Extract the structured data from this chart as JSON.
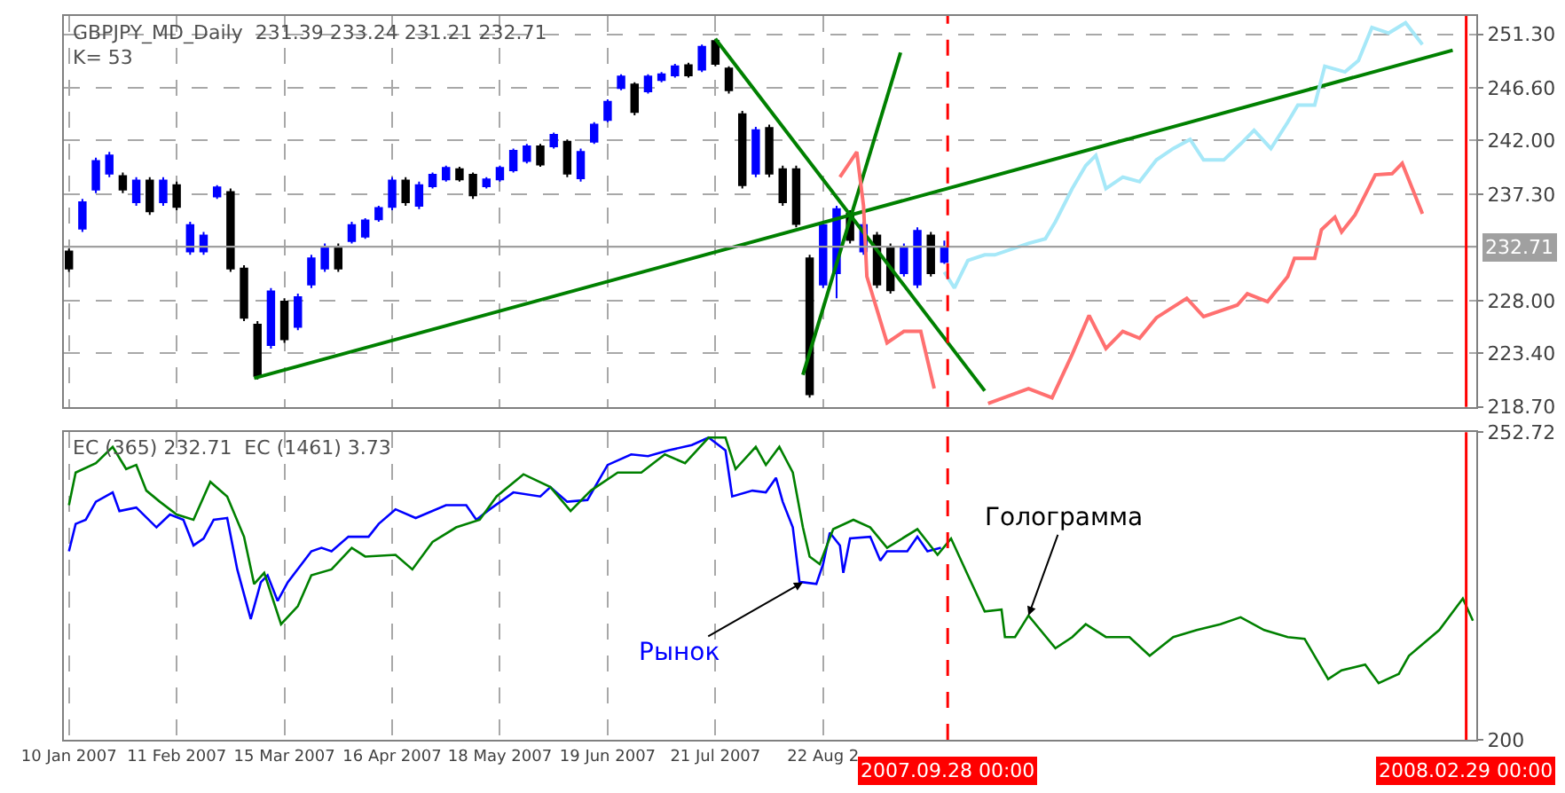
{
  "chart_data": [
    {
      "type": "candlestick",
      "title": "GBPJPY_MD_Daily  231.39 233.24 231.21 232.71",
      "subtitle": "K= 53",
      "x": [
        "2007-01-10",
        "2007-01-14",
        "2007-01-18",
        "2007-01-22",
        "2007-01-26",
        "2007-01-30",
        "2007-02-03",
        "2007-02-07",
        "2007-02-11",
        "2007-02-15",
        "2007-02-19",
        "2007-02-23",
        "2007-02-27",
        "2007-03-03",
        "2007-03-07",
        "2007-03-11",
        "2007-03-15",
        "2007-03-19",
        "2007-03-23",
        "2007-03-27",
        "2007-03-31",
        "2007-04-04",
        "2007-04-08",
        "2007-04-12",
        "2007-04-16",
        "2007-04-20",
        "2007-04-24",
        "2007-04-28",
        "2007-05-02",
        "2007-05-06",
        "2007-05-10",
        "2007-05-14",
        "2007-05-18",
        "2007-05-22",
        "2007-05-26",
        "2007-05-30",
        "2007-06-03",
        "2007-06-07",
        "2007-06-11",
        "2007-06-15",
        "2007-06-19",
        "2007-06-23",
        "2007-06-27",
        "2007-07-01",
        "2007-07-05",
        "2007-07-09",
        "2007-07-13",
        "2007-07-17",
        "2007-07-21",
        "2007-07-25",
        "2007-07-29",
        "2007-08-02",
        "2007-08-06",
        "2007-08-10",
        "2007-08-14",
        "2007-08-18",
        "2007-08-22",
        "2007-08-26",
        "2007-08-30",
        "2007-09-03",
        "2007-09-07",
        "2007-09-11",
        "2007-09-15",
        "2007-09-19",
        "2007-09-23",
        "2007-09-27"
      ],
      "ohlc": [
        [
          232.3,
          232.55,
          230.5,
          230.8
        ],
        [
          234.3,
          236.9,
          234.0,
          236.6
        ],
        [
          237.7,
          240.5,
          237.4,
          240.2
        ],
        [
          239.1,
          241.0,
          238.8,
          240.7
        ],
        [
          238.9,
          239.2,
          237.4,
          237.7
        ],
        [
          236.6,
          238.8,
          236.3,
          238.5
        ],
        [
          238.5,
          238.8,
          235.5,
          235.8
        ],
        [
          236.6,
          238.8,
          236.3,
          238.5
        ],
        [
          238.1,
          238.4,
          235.9,
          236.2
        ],
        [
          232.3,
          234.9,
          232.0,
          234.6
        ],
        [
          232.3,
          234.0,
          232.0,
          233.7
        ],
        [
          237.1,
          238.1,
          236.9,
          237.9
        ],
        [
          237.5,
          237.8,
          230.5,
          230.8
        ],
        [
          230.8,
          231.1,
          226.2,
          226.5
        ],
        [
          225.9,
          226.2,
          221.1,
          221.4
        ],
        [
          224.1,
          229.1,
          223.8,
          228.8
        ],
        [
          227.9,
          228.2,
          224.3,
          224.6
        ],
        [
          225.7,
          228.6,
          225.4,
          228.3
        ],
        [
          229.4,
          232.0,
          229.1,
          231.7
        ],
        [
          230.8,
          233.0,
          230.5,
          232.7
        ],
        [
          232.7,
          233.0,
          230.5,
          230.8
        ],
        [
          233.2,
          234.9,
          233.0,
          234.6
        ],
        [
          233.6,
          235.2,
          233.4,
          235.0
        ],
        [
          235.1,
          236.3,
          234.9,
          236.1
        ],
        [
          236.2,
          238.8,
          235.9,
          238.5
        ],
        [
          238.5,
          238.8,
          236.3,
          236.6
        ],
        [
          236.3,
          238.4,
          236.0,
          238.1
        ],
        [
          238.0,
          239.2,
          237.8,
          239.0
        ],
        [
          238.6,
          239.8,
          238.4,
          239.6
        ],
        [
          239.5,
          239.7,
          238.4,
          238.6
        ],
        [
          239.0,
          239.2,
          236.9,
          237.2
        ],
        [
          238.0,
          238.8,
          237.8,
          238.6
        ],
        [
          238.6,
          239.8,
          238.4,
          239.6
        ],
        [
          239.4,
          241.3,
          239.2,
          241.1
        ],
        [
          240.2,
          241.7,
          240.0,
          241.5
        ],
        [
          241.5,
          241.7,
          239.7,
          239.9
        ],
        [
          241.5,
          242.7,
          241.3,
          242.5
        ],
        [
          241.9,
          242.1,
          238.8,
          239.1
        ],
        [
          238.7,
          241.3,
          238.4,
          241.0
        ],
        [
          241.9,
          243.6,
          241.7,
          243.4
        ],
        [
          243.8,
          245.6,
          243.6,
          245.4
        ],
        [
          246.6,
          247.8,
          246.4,
          247.6
        ],
        [
          246.9,
          247.1,
          244.2,
          244.5
        ],
        [
          246.3,
          247.8,
          246.1,
          247.6
        ],
        [
          247.3,
          248.0,
          247.1,
          247.8
        ],
        [
          247.7,
          248.7,
          247.5,
          248.5
        ],
        [
          248.6,
          248.8,
          247.5,
          247.7
        ],
        [
          248.2,
          250.4,
          248.0,
          250.2
        ],
        [
          250.7,
          250.9,
          248.5,
          248.7
        ],
        [
          248.3,
          248.5,
          246.1,
          246.4
        ],
        [
          244.3,
          244.6,
          237.8,
          238.1
        ],
        [
          239.1,
          243.2,
          238.8,
          242.9
        ],
        [
          243.1,
          243.4,
          238.8,
          239.1
        ],
        [
          239.5,
          239.8,
          236.3,
          236.6
        ],
        [
          239.5,
          239.8,
          234.4,
          234.7
        ],
        [
          231.7,
          232.0,
          219.5,
          219.8
        ],
        [
          229.4,
          234.9,
          229.1,
          234.6
        ],
        [
          230.4,
          236.3,
          228.2,
          236.0
        ],
        [
          235.6,
          235.9,
          233.0,
          233.3
        ],
        [
          232.3,
          234.9,
          232.0,
          234.6
        ],
        [
          233.7,
          234.0,
          229.1,
          229.4
        ],
        [
          232.7,
          233.0,
          228.6,
          228.9
        ],
        [
          230.4,
          233.0,
          230.1,
          232.7
        ],
        [
          229.4,
          234.4,
          229.1,
          234.1
        ],
        [
          233.7,
          234.0,
          230.1,
          230.4
        ],
        [
          231.39,
          233.24,
          231.21,
          232.71
        ]
      ],
      "colors": [
        "#000000",
        "#0000ff",
        "#0000ff",
        "#0000ff",
        "#000000",
        "#0000ff",
        "#000000",
        "#0000ff",
        "#000000",
        "#0000ff",
        "#0000ff",
        "#0000ff",
        "#000000",
        "#000000",
        "#000000",
        "#0000ff",
        "#000000",
        "#0000ff",
        "#0000ff",
        "#0000ff",
        "#000000",
        "#0000ff",
        "#0000ff",
        "#0000ff",
        "#0000ff",
        "#000000",
        "#0000ff",
        "#0000ff",
        "#0000ff",
        "#000000",
        "#000000",
        "#0000ff",
        "#0000ff",
        "#0000ff",
        "#0000ff",
        "#000000",
        "#0000ff",
        "#000000",
        "#0000ff",
        "#0000ff",
        "#0000ff",
        "#0000ff",
        "#000000",
        "#0000ff",
        "#0000ff",
        "#0000ff",
        "#000000",
        "#0000ff",
        "#000000",
        "#000000",
        "#000000",
        "#0000ff",
        "#000000",
        "#000000",
        "#000000",
        "#000000",
        "#0000ff",
        "#0000ff",
        "#000000",
        "#0000ff",
        "#000000",
        "#000000",
        "#0000ff",
        "#0000ff",
        "#000000",
        "#0000ff"
      ],
      "series": [
        {
          "type": "line",
          "color": "#008000",
          "x": [
            "2007-03-06",
            "2008-02-25"
          ],
          "values": [
            221.2,
            249.9
          ]
        },
        {
          "type": "line",
          "color": "#008000",
          "x": [
            "2007-07-21",
            "2007-10-09"
          ],
          "values": [
            250.9,
            220.1
          ]
        },
        {
          "type": "line",
          "color": "#008000",
          "x": [
            "2007-08-16",
            "2007-09-14"
          ],
          "values": [
            221.5,
            249.7
          ]
        },
        {
          "type": "line",
          "color": "#ff7070",
          "x": [
            "2007-08-27",
            "2007-09-01",
            "2007-09-03",
            "2007-09-04",
            "2007-09-07",
            "2007-09-10",
            "2007-09-15",
            "2007-09-20",
            "2007-09-24",
            "2007-09-30",
            "2007-10-10",
            "2007-10-22",
            "2007-10-29",
            "2007-11-04",
            "2007-11-09",
            "2007-11-14",
            "2007-11-19",
            "2007-11-24",
            "2007-11-29",
            "2007-12-08",
            "2007-12-13",
            "2007-12-23",
            "2007-12-26",
            "2008-01-01",
            "2008-01-07",
            "2008-01-09",
            "2008-01-15",
            "2008-01-17",
            "2008-01-21",
            "2008-01-23",
            "2008-01-27",
            "2008-02-02",
            "2008-02-07",
            "2008-02-10",
            "2008-02-13",
            "2008-02-16"
          ],
          "values": [
            238.8,
            241.0,
            236.3,
            230.1,
            227.2,
            224.3,
            225.3,
            225.3,
            220.3,
            null,
            219.0,
            220.3,
            219.5,
            223.3,
            226.7,
            223.8,
            225.3,
            224.7,
            226.5,
            228.2,
            226.6,
            227.6,
            228.6,
            227.9,
            230.1,
            231.7,
            231.7,
            234.2,
            235.3,
            234.0,
            235.5,
            239.0,
            239.1,
            240.0,
            237.8,
            235.6
          ]
        },
        {
          "type": "line",
          "color": "#a6e8f8",
          "x": [
            "2007-09-27",
            "2007-09-30",
            "2007-10-04",
            "2007-10-09",
            "2007-10-12",
            "2007-10-22",
            "2007-10-27",
            "2007-10-30",
            "2007-11-04",
            "2007-11-08",
            "2007-11-11",
            "2007-11-14",
            "2007-11-19",
            "2007-11-24",
            "2007-11-29",
            "2007-12-04",
            "2007-12-09",
            "2007-12-13",
            "2007-12-19",
            "2007-12-24",
            "2007-12-28",
            "2008-01-02",
            "2008-01-07",
            "2008-01-10",
            "2008-01-15",
            "2008-01-18",
            "2008-01-24",
            "2008-01-28",
            "2008-02-01",
            "2008-02-06",
            "2008-02-11",
            "2008-02-16"
          ],
          "values": [
            230.5,
            229.1,
            231.5,
            232.0,
            232.0,
            233.0,
            233.4,
            234.9,
            237.8,
            239.8,
            240.7,
            237.8,
            238.8,
            238.4,
            240.3,
            241.3,
            242.1,
            240.3,
            240.3,
            241.7,
            242.9,
            241.3,
            243.6,
            245.1,
            245.1,
            248.5,
            248.0,
            249.0,
            251.9,
            251.4,
            252.3,
            250.4
          ]
        }
      ],
      "xlim": [
        "2007-01-08T12:00",
        "2008-03-03"
      ],
      "xticks": [
        "2007-01-10",
        "2007-02-11",
        "2007-03-15",
        "2007-04-16",
        "2007-05-18",
        "2007-06-19",
        "2007-07-21",
        "2007-08-22"
      ],
      "ylim": [
        218.7,
        252.9
      ],
      "yticks": [
        {
          "value": 218.7,
          "label": "218.70"
        },
        {
          "value": 223.4,
          "label": "223.40"
        },
        {
          "value": 228,
          "label": "228.00"
        },
        {
          "value": 237.3,
          "label": "237.30"
        },
        {
          "value": 242,
          "label": "242.00"
        },
        {
          "value": 246.6,
          "label": "246.60"
        },
        {
          "value": 251.3,
          "label": "251.30"
        }
      ],
      "ref_lines": [
        {
          "axis": "y",
          "value": 232.71,
          "label": "232.71",
          "color": "#a0a0a0"
        },
        {
          "axis": "x",
          "value": "2007-09-28",
          "color": "#ff0000",
          "line_style": "dashed"
        },
        {
          "axis": "x",
          "value": "2008-02-29",
          "color": "#ff0000",
          "line_style": "solid"
        }
      ],
      "grid": true,
      "tick_labels": "y"
    },
    {
      "type": "line",
      "title": "EC (365) 232.71  EC (1461) 3.73",
      "series": [
        {
          "color": "#0000ff",
          "x": [
            "2007-01-10",
            "2007-01-12",
            "2007-01-15",
            "2007-01-18",
            "2007-01-23",
            "2007-01-25",
            "2007-01-30",
            "2007-02-05",
            "2007-02-09",
            "2007-02-13",
            "2007-02-16",
            "2007-02-19",
            "2007-02-22",
            "2007-02-26",
            "2007-03-01",
            "2007-03-05",
            "2007-03-08",
            "2007-03-10",
            "2007-03-13",
            "2007-03-16",
            "2007-03-23",
            "2007-03-26",
            "2007-03-29",
            "2007-04-03",
            "2007-04-09",
            "2007-04-12",
            "2007-04-17",
            "2007-04-23",
            "2007-05-02",
            "2007-05-08",
            "2007-05-11",
            "2007-05-15",
            "2007-05-22",
            "2007-05-30",
            "2007-06-02",
            "2007-06-07",
            "2007-06-13",
            "2007-06-19",
            "2007-06-26",
            "2007-07-01",
            "2007-07-07",
            "2007-07-14",
            "2007-07-19",
            "2007-07-24",
            "2007-07-26",
            "2007-08-01",
            "2007-08-05",
            "2007-08-08",
            "2007-08-10",
            "2007-08-13",
            "2007-08-15",
            "2007-08-16",
            "2007-08-20",
            "2007-08-22",
            "2007-08-24",
            "2007-08-27",
            "2007-08-28",
            "2007-08-30",
            "2007-09-05",
            "2007-09-08",
            "2007-09-10",
            "2007-09-16",
            "2007-09-19",
            "2007-09-22",
            "2007-09-26"
          ],
          "values": [
            232.3,
            237.0,
            237.7,
            240.8,
            242.4,
            239.2,
            239.8,
            236.4,
            238.6,
            237.7,
            233.3,
            234.5,
            237.7,
            238.0,
            229.2,
            220.7,
            227.0,
            228.2,
            223.8,
            227.0,
            232.3,
            232.9,
            232.3,
            234.8,
            234.8,
            237.0,
            239.5,
            238.0,
            240.2,
            240.2,
            237.7,
            239.5,
            242.4,
            241.7,
            243.3,
            240.8,
            241.1,
            247.1,
            248.9,
            248.6,
            249.6,
            250.5,
            251.8,
            249.6,
            241.7,
            242.7,
            242.4,
            244.9,
            240.8,
            236.4,
            227.0,
            227.0,
            226.7,
            230.1,
            235.5,
            233.3,
            228.6,
            234.5,
            234.8,
            230.7,
            232.3,
            232.3,
            234.8,
            232.3,
            232.9
          ]
        },
        {
          "color": "#008000",
          "x": [
            "2007-01-10",
            "2007-01-12",
            "2007-01-18",
            "2007-01-23",
            "2007-01-27",
            "2007-01-30",
            "2007-02-02",
            "2007-02-06",
            "2007-02-11",
            "2007-02-16",
            "2007-02-21",
            "2007-02-26",
            "2007-03-03",
            "2007-03-06",
            "2007-03-09",
            "2007-03-14",
            "2007-03-19",
            "2007-03-23",
            "2007-03-29",
            "2007-04-04",
            "2007-04-08",
            "2007-04-17",
            "2007-04-22",
            "2007-04-28",
            "2007-05-05",
            "2007-05-12",
            "2007-05-17",
            "2007-05-25",
            "2007-06-02",
            "2007-06-08",
            "2007-06-14",
            "2007-06-22",
            "2007-06-29",
            "2007-07-06",
            "2007-07-12",
            "2007-07-19",
            "2007-07-24",
            "2007-07-27",
            "2007-08-02",
            "2007-08-05",
            "2007-08-09",
            "2007-08-13",
            "2007-08-16",
            "2007-08-18",
            "2007-08-21",
            "2007-08-25",
            "2007-08-31",
            "2007-09-05",
            "2007-09-10",
            "2007-09-19",
            "2007-09-25",
            "2007-09-29",
            "2007-10-04",
            "2007-10-09",
            "2007-10-14",
            "2007-10-15",
            "2007-10-18",
            "2007-10-22",
            "2007-10-30",
            "2007-11-04",
            "2007-11-08",
            "2007-11-14",
            "2007-11-21",
            "2007-11-27",
            "2007-12-04",
            "2007-12-11",
            "2007-12-18",
            "2007-12-24",
            "2007-12-31",
            "2008-01-07",
            "2008-01-12",
            "2008-01-19",
            "2008-01-23",
            "2008-01-30",
            "2008-02-03",
            "2008-02-09",
            "2008-02-12",
            "2008-02-21",
            "2008-02-28",
            "2008-03-02"
          ],
          "values": [
            240.2,
            245.8,
            247.4,
            250.2,
            246.4,
            247.1,
            242.7,
            240.8,
            238.6,
            237.7,
            244.2,
            241.7,
            234.8,
            226.7,
            228.6,
            219.8,
            222.9,
            228.2,
            229.2,
            232.9,
            231.4,
            231.7,
            229.2,
            233.9,
            236.4,
            237.7,
            241.7,
            245.5,
            243.3,
            239.2,
            242.7,
            245.8,
            245.8,
            248.9,
            247.4,
            251.8,
            251.8,
            246.4,
            250.2,
            247.1,
            250.2,
            245.8,
            236.4,
            231.4,
            230.1,
            236.1,
            237.7,
            236.4,
            232.9,
            236.1,
            231.7,
            234.5,
            228.2,
            222.0,
            222.3,
            217.6,
            217.6,
            221.3,
            215.7,
            217.6,
            219.8,
            217.6,
            217.6,
            214.4,
            217.6,
            218.8,
            219.8,
            221.0,
            218.8,
            217.6,
            217.3,
            210.4,
            211.9,
            212.9,
            209.7,
            211.3,
            214.4,
            218.8,
            224.2,
            220.4
          ]
        }
      ],
      "xlim": [
        "2007-01-08T12:00",
        "2008-03-03"
      ],
      "xticks": [
        {
          "value": "2007-01-10",
          "label": "10 Jan 2007"
        },
        {
          "value": "2007-02-11",
          "label": "11 Feb 2007"
        },
        {
          "value": "2007-03-15",
          "label": "15 Mar 2007"
        },
        {
          "value": "2007-04-16",
          "label": "16 Apr 2007"
        },
        {
          "value": "2007-05-18",
          "label": "18 May 2007"
        },
        {
          "value": "2007-06-19",
          "label": "19 Jun 2007"
        },
        {
          "value": "2007-07-21",
          "label": "21 Jul 2007"
        },
        {
          "value": "2007-08-22",
          "label": "22 Aug 2"
        }
      ],
      "ylim": [
        200,
        252.72
      ],
      "yticks": [
        200,
        252.72
      ],
      "ref_lines": [
        {
          "axis": "x",
          "value": "2007-09-28",
          "label": "2007.09.28 00:00",
          "color": "#ff0000",
          "line_style": "dashed"
        },
        {
          "axis": "x",
          "value": "2008-02-29",
          "label": "2008.02.29 00:00",
          "color": "#ff0000",
          "line_style": "solid"
        }
      ],
      "annotations": [
        {
          "text": "Рынок",
          "x": "2007-08-16",
          "y": 227.0
        },
        {
          "text": "Голограмма",
          "x": "2007-10-22",
          "y": 221.3
        }
      ],
      "grid": "x"
    }
  ]
}
